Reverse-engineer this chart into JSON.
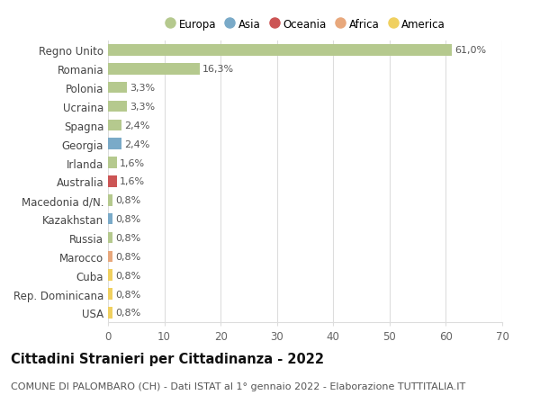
{
  "countries": [
    "Regno Unito",
    "Romania",
    "Polonia",
    "Ucraina",
    "Spagna",
    "Georgia",
    "Irlanda",
    "Australia",
    "Macedonia d/N.",
    "Kazakhstan",
    "Russia",
    "Marocco",
    "Cuba",
    "Rep. Dominicana",
    "USA"
  ],
  "values": [
    61.0,
    16.3,
    3.3,
    3.3,
    2.4,
    2.4,
    1.6,
    1.6,
    0.8,
    0.8,
    0.8,
    0.8,
    0.8,
    0.8,
    0.8
  ],
  "labels": [
    "61,0%",
    "16,3%",
    "3,3%",
    "3,3%",
    "2,4%",
    "2,4%",
    "1,6%",
    "1,6%",
    "0,8%",
    "0,8%",
    "0,8%",
    "0,8%",
    "0,8%",
    "0,8%",
    "0,8%"
  ],
  "continents": [
    "Europa",
    "Europa",
    "Europa",
    "Europa",
    "Europa",
    "Asia",
    "Europa",
    "Oceania",
    "Europa",
    "Asia",
    "Europa",
    "Africa",
    "America",
    "America",
    "America"
  ],
  "continent_colors": {
    "Europa": "#b5c98e",
    "Asia": "#7aaac8",
    "Oceania": "#cc5555",
    "Africa": "#e8a87c",
    "America": "#f0d060"
  },
  "legend_order": [
    "Europa",
    "Asia",
    "Oceania",
    "Africa",
    "America"
  ],
  "title": "Cittadini Stranieri per Cittadinanza - 2022",
  "subtitle": "COMUNE DI PALOMBARO (CH) - Dati ISTAT al 1° gennaio 2022 - Elaborazione TUTTITALIA.IT",
  "xlim": [
    0,
    70
  ],
  "xticks": [
    0,
    10,
    20,
    30,
    40,
    50,
    60,
    70
  ],
  "background_color": "#ffffff",
  "grid_color": "#dddddd",
  "bar_height": 0.6,
  "title_fontsize": 10.5,
  "subtitle_fontsize": 8,
  "tick_fontsize": 8.5,
  "label_fontsize": 8
}
